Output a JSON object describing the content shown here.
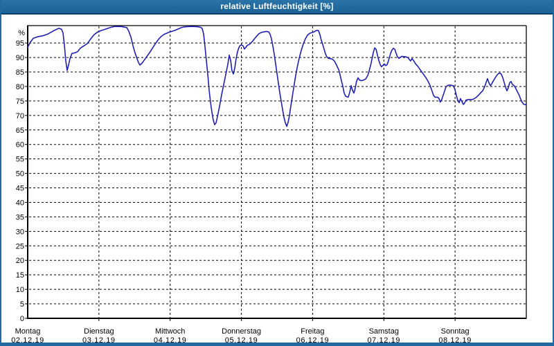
{
  "window": {
    "title": "relative Luftfeuchtigkeit [%]",
    "title_bar_color": "#1c6396",
    "title_bar_light_color": "#2a73a8",
    "title_bar_edge_color": "#0d4068",
    "frame_color": "#2069a2",
    "title_text_color": "#ffffff"
  },
  "chart_data": {
    "type": "line",
    "title": "relative Luftfeuchtigkeit [%]",
    "ylabel": "%",
    "unit_label": "%",
    "line_color": "#1f1fb4",
    "grid_color": "#000000",
    "text_color": "#000000",
    "grid_style": "dashed",
    "legend": "none",
    "y_axis": {
      "min": 0,
      "max": 101,
      "tick_step": 5,
      "highest_tick_label": 95
    },
    "x_axis": {
      "hours_span": 168,
      "gridline_hours": [
        24,
        48,
        72,
        96,
        120,
        144
      ],
      "days": [
        {
          "name": "Montag",
          "date": "02.12.19"
        },
        {
          "name": "Dienstag",
          "date": "03.12.19"
        },
        {
          "name": "Mittwoch",
          "date": "04.12.19"
        },
        {
          "name": "Donnerstag",
          "date": "05.12.19"
        },
        {
          "name": "Freitag",
          "date": "06.12.19"
        },
        {
          "name": "Samstag",
          "date": "07.12.19"
        },
        {
          "name": "Sonntag",
          "date": "08.12.19"
        }
      ]
    },
    "series": [
      {
        "name": "relative Luftfeuchtigkeit",
        "unit": "%",
        "points_hours_value": [
          [
            0,
            93.5
          ],
          [
            0.9,
            95.3
          ],
          [
            1.9,
            96.6
          ],
          [
            3.5,
            97.2
          ],
          [
            5.1,
            97.5
          ],
          [
            7,
            98.2
          ],
          [
            8.9,
            99.3
          ],
          [
            10.5,
            100.1
          ],
          [
            11.4,
            99.7
          ],
          [
            11.9,
            98.5
          ],
          [
            12.4,
            94
          ],
          [
            12.8,
            89
          ],
          [
            13.3,
            85.5
          ],
          [
            13.8,
            87.5
          ],
          [
            14.2,
            89.5
          ],
          [
            14.9,
            91.4
          ],
          [
            15.9,
            91.6
          ],
          [
            16.8,
            92
          ],
          [
            17.7,
            93.2
          ],
          [
            18.9,
            94
          ],
          [
            20.1,
            94.8
          ],
          [
            21.2,
            96.4
          ],
          [
            22.4,
            97.9
          ],
          [
            23.6,
            98.8
          ],
          [
            24.5,
            99.2
          ],
          [
            25.7,
            99.6
          ],
          [
            26.8,
            100
          ],
          [
            28,
            100.4
          ],
          [
            29.2,
            100.7
          ],
          [
            31.5,
            100.7
          ],
          [
            33.4,
            100.3
          ],
          [
            34.1,
            99
          ],
          [
            34.8,
            97
          ],
          [
            35.5,
            94
          ],
          [
            36.2,
            91.5
          ],
          [
            36.9,
            89.5
          ],
          [
            37.3,
            88.3
          ],
          [
            37.8,
            87.4
          ],
          [
            38.5,
            88
          ],
          [
            39.2,
            89
          ],
          [
            39.9,
            90
          ],
          [
            40.6,
            91
          ],
          [
            41.3,
            92
          ],
          [
            42.2,
            93.5
          ],
          [
            43.2,
            95
          ],
          [
            44.1,
            96.3
          ],
          [
            45,
            97.3
          ],
          [
            46,
            98
          ],
          [
            46.9,
            98.4
          ],
          [
            47.8,
            98.8
          ],
          [
            48.5,
            99
          ],
          [
            49.5,
            99.3
          ],
          [
            50.4,
            99.7
          ],
          [
            51.3,
            100.1
          ],
          [
            52,
            100.4
          ],
          [
            53.2,
            100.6
          ],
          [
            54.6,
            100.7
          ],
          [
            56,
            100.7
          ],
          [
            57.4,
            100.6
          ],
          [
            58.3,
            100.4
          ],
          [
            58.8,
            100
          ],
          [
            59.3,
            98
          ],
          [
            59.7,
            94
          ],
          [
            60.2,
            89
          ],
          [
            60.7,
            84
          ],
          [
            61.1,
            79
          ],
          [
            61.6,
            74.5
          ],
          [
            62.1,
            71
          ],
          [
            62.5,
            68.5
          ],
          [
            63,
            66.8
          ],
          [
            63.5,
            67.5
          ],
          [
            63.9,
            69.5
          ],
          [
            64.6,
            73
          ],
          [
            65.3,
            77
          ],
          [
            66,
            80.5
          ],
          [
            66.7,
            84
          ],
          [
            67.4,
            87.5
          ],
          [
            67.9,
            90.8
          ],
          [
            68.4,
            89
          ],
          [
            68.8,
            85.5
          ],
          [
            69.3,
            84.3
          ],
          [
            69.8,
            86.5
          ],
          [
            70.2,
            89.5
          ],
          [
            70.7,
            92
          ],
          [
            71.2,
            93.5
          ],
          [
            71.6,
            94.2
          ],
          [
            72.1,
            94.3
          ],
          [
            72.6,
            94
          ],
          [
            73,
            92.9
          ],
          [
            73.5,
            93.5
          ],
          [
            74,
            94.2
          ],
          [
            74.7,
            94.5
          ],
          [
            75.4,
            95.2
          ],
          [
            76.1,
            96
          ],
          [
            77,
            97.2
          ],
          [
            77.9,
            98.2
          ],
          [
            78.9,
            98.7
          ],
          [
            80.5,
            99
          ],
          [
            81.2,
            98.8
          ],
          [
            81.7,
            98
          ],
          [
            82.1,
            96.5
          ],
          [
            82.6,
            94
          ],
          [
            83.1,
            91
          ],
          [
            83.5,
            88
          ],
          [
            84,
            84.5
          ],
          [
            84.5,
            81
          ],
          [
            84.9,
            78
          ],
          [
            85.4,
            75
          ],
          [
            85.9,
            72
          ],
          [
            86.3,
            69.5
          ],
          [
            86.8,
            67.5
          ],
          [
            87.3,
            66.2
          ],
          [
            87.7,
            67.5
          ],
          [
            88.2,
            70
          ],
          [
            88.7,
            73.5
          ],
          [
            89.4,
            78
          ],
          [
            90.1,
            82.5
          ],
          [
            90.8,
            86.5
          ],
          [
            91.5,
            89.8
          ],
          [
            92.2,
            92.5
          ],
          [
            92.9,
            94.8
          ],
          [
            93.6,
            96.5
          ],
          [
            94.3,
            97.7
          ],
          [
            95,
            98.3
          ],
          [
            95.7,
            98.6
          ],
          [
            96.4,
            98.8
          ],
          [
            97.1,
            99.2
          ],
          [
            97.5,
            99.4
          ],
          [
            98,
            99.2
          ],
          [
            98.5,
            97.8
          ],
          [
            98.9,
            96
          ],
          [
            99.4,
            94.5
          ],
          [
            99.9,
            92.8
          ],
          [
            100.3,
            91.3
          ],
          [
            100.8,
            90.2
          ],
          [
            101.3,
            89.7
          ],
          [
            102,
            89.6
          ],
          [
            102.7,
            89.4
          ],
          [
            103.4,
            88.7
          ],
          [
            104.1,
            87.3
          ],
          [
            104.8,
            85.8
          ],
          [
            105.2,
            84.2
          ],
          [
            105.7,
            82
          ],
          [
            106.2,
            80
          ],
          [
            106.6,
            77.8
          ],
          [
            107.1,
            76.7
          ],
          [
            107.6,
            76.4
          ],
          [
            108,
            76.3
          ],
          [
            108.5,
            78
          ],
          [
            109,
            80.3
          ],
          [
            109.4,
            78.8
          ],
          [
            109.9,
            77.7
          ],
          [
            110.4,
            79.5
          ],
          [
            110.8,
            81.8
          ],
          [
            111.3,
            83
          ],
          [
            111.8,
            82.2
          ],
          [
            112.5,
            82
          ],
          [
            113.2,
            82.2
          ],
          [
            113.9,
            82.6
          ],
          [
            114.6,
            83.8
          ],
          [
            115,
            85.2
          ],
          [
            115.7,
            88
          ],
          [
            116.4,
            91.5
          ],
          [
            116.9,
            93.3
          ],
          [
            117.4,
            92.8
          ],
          [
            117.8,
            91
          ],
          [
            118.3,
            89
          ],
          [
            118.8,
            87.5
          ],
          [
            119.2,
            86.8
          ],
          [
            119.7,
            87.3
          ],
          [
            120.2,
            87.8
          ],
          [
            120.6,
            87.2
          ],
          [
            121.1,
            87.5
          ],
          [
            121.6,
            89
          ],
          [
            122.3,
            91.5
          ],
          [
            122.7,
            92.5
          ],
          [
            123.2,
            93.2
          ],
          [
            123.7,
            92.8
          ],
          [
            124.1,
            91.5
          ],
          [
            124.6,
            90.2
          ],
          [
            125.1,
            89.7
          ],
          [
            125.5,
            90
          ],
          [
            126,
            90.4
          ],
          [
            126.7,
            90.3
          ],
          [
            127.4,
            90.2
          ],
          [
            128.1,
            90
          ],
          [
            128.6,
            89.3
          ],
          [
            129,
            88.8
          ],
          [
            129.5,
            89.6
          ],
          [
            130,
            89
          ],
          [
            130.7,
            87.8
          ],
          [
            131.4,
            87
          ],
          [
            132.1,
            86
          ],
          [
            132.8,
            85
          ],
          [
            133.5,
            84
          ],
          [
            134.2,
            83
          ],
          [
            134.9,
            81.8
          ],
          [
            135.6,
            80.3
          ],
          [
            136.3,
            78.3
          ],
          [
            136.7,
            77
          ],
          [
            137.2,
            76.3
          ],
          [
            138.1,
            76.3
          ],
          [
            138.6,
            75.8
          ],
          [
            139,
            74.6
          ],
          [
            139.5,
            75.5
          ],
          [
            140,
            77
          ],
          [
            140.5,
            78.5
          ],
          [
            140.9,
            79.8
          ],
          [
            141.4,
            80.3
          ],
          [
            142.1,
            80.5
          ],
          [
            142.8,
            80.4
          ],
          [
            143.5,
            80.2
          ],
          [
            144,
            78.8
          ],
          [
            144.4,
            77
          ],
          [
            144.9,
            75.2
          ],
          [
            145.4,
            74.4
          ],
          [
            145.8,
            75.8
          ],
          [
            146.3,
            74.8
          ],
          [
            146.8,
            73.8
          ],
          [
            147.2,
            74.3
          ],
          [
            147.7,
            75.3
          ],
          [
            148.4,
            75.5
          ],
          [
            149.8,
            75.5
          ],
          [
            150.5,
            75.8
          ],
          [
            151.2,
            76.3
          ],
          [
            151.9,
            77
          ],
          [
            152.6,
            77.8
          ],
          [
            153.3,
            78.5
          ],
          [
            154,
            80
          ],
          [
            154.5,
            81.5
          ],
          [
            154.9,
            82.7
          ],
          [
            155.4,
            81.3
          ],
          [
            155.9,
            80.3
          ],
          [
            156.3,
            80.8
          ],
          [
            156.8,
            81.8
          ],
          [
            157.3,
            82.6
          ],
          [
            157.7,
            83.3
          ],
          [
            158.2,
            84
          ],
          [
            158.7,
            84.5
          ],
          [
            159.1,
            84.6
          ],
          [
            159.6,
            84.2
          ],
          [
            160.1,
            83
          ],
          [
            160.5,
            81.5
          ],
          [
            161,
            79.8
          ],
          [
            161.5,
            78.5
          ],
          [
            161.9,
            79.5
          ],
          [
            162.4,
            81.3
          ],
          [
            162.9,
            81.7
          ],
          [
            163.3,
            80.7
          ],
          [
            163.8,
            80.4
          ],
          [
            164.2,
            79.8
          ],
          [
            164.7,
            78.8
          ],
          [
            165.2,
            77.8
          ],
          [
            165.7,
            76.8
          ],
          [
            166.1,
            75.6
          ],
          [
            166.6,
            74.6
          ],
          [
            167.1,
            73.9
          ],
          [
            167.5,
            73.7
          ],
          [
            168,
            73.8
          ]
        ]
      }
    ]
  }
}
